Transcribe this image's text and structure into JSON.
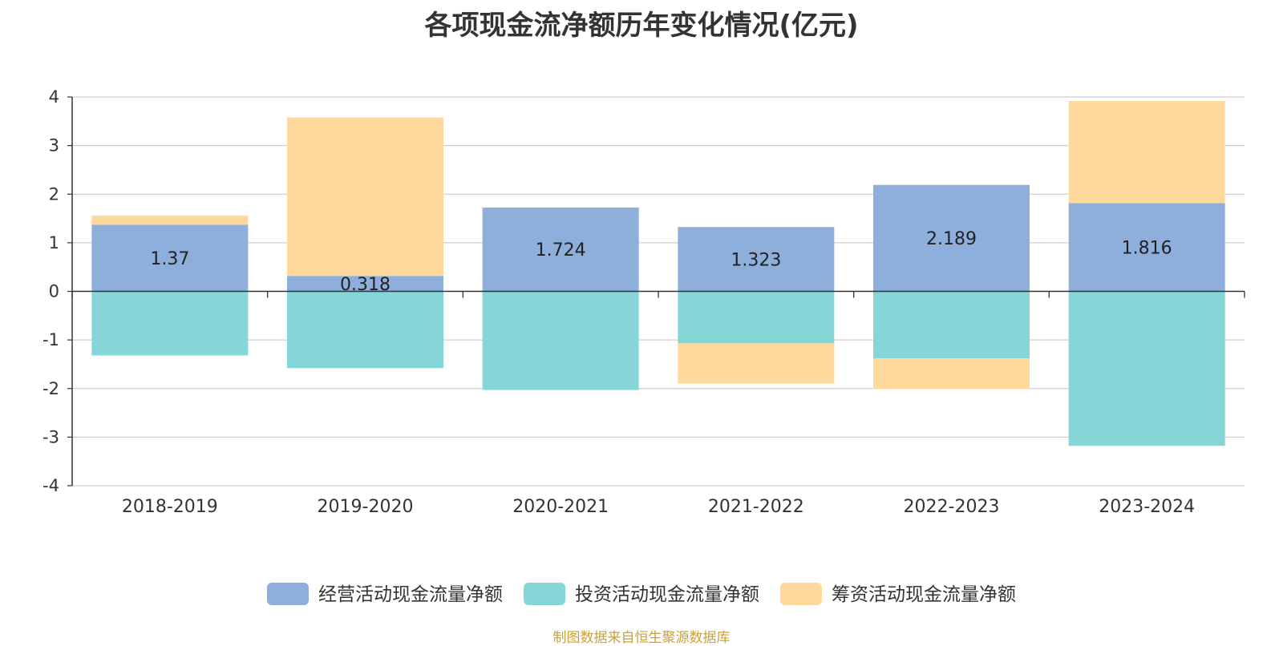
{
  "chart_data": {
    "type": "bar",
    "stacked": true,
    "title": "各项现金流净额历年变化情况(亿元)",
    "categories": [
      "2018-2019",
      "2019-2020",
      "2020-2021",
      "2021-2022",
      "2022-2023",
      "2023-2024"
    ],
    "series": [
      {
        "name": "经营活动现金流量净额",
        "color": "#8eaedb",
        "values": [
          1.37,
          0.318,
          1.724,
          1.323,
          2.189,
          1.816
        ]
      },
      {
        "name": "投资活动现金流量净额",
        "color": "#86d6d8",
        "values": [
          -1.32,
          -1.58,
          -2.03,
          -1.07,
          -1.38,
          -3.18
        ]
      },
      {
        "name": "筹资活动现金流量净额",
        "color": "#fed99b",
        "values": [
          0.19,
          3.26,
          0.0,
          -0.83,
          -0.63,
          2.1
        ]
      }
    ],
    "data_labels": [
      "1.37",
      "0.318",
      "1.724",
      "1.323",
      "2.189",
      "1.816"
    ],
    "ylim": [
      -4,
      4
    ],
    "yticks": [
      -4,
      -3,
      -2,
      -1,
      0,
      1,
      2,
      3,
      4
    ],
    "grid": true,
    "legend_position": "bottom",
    "source_note": "制图数据来自恒生聚源数据库"
  }
}
